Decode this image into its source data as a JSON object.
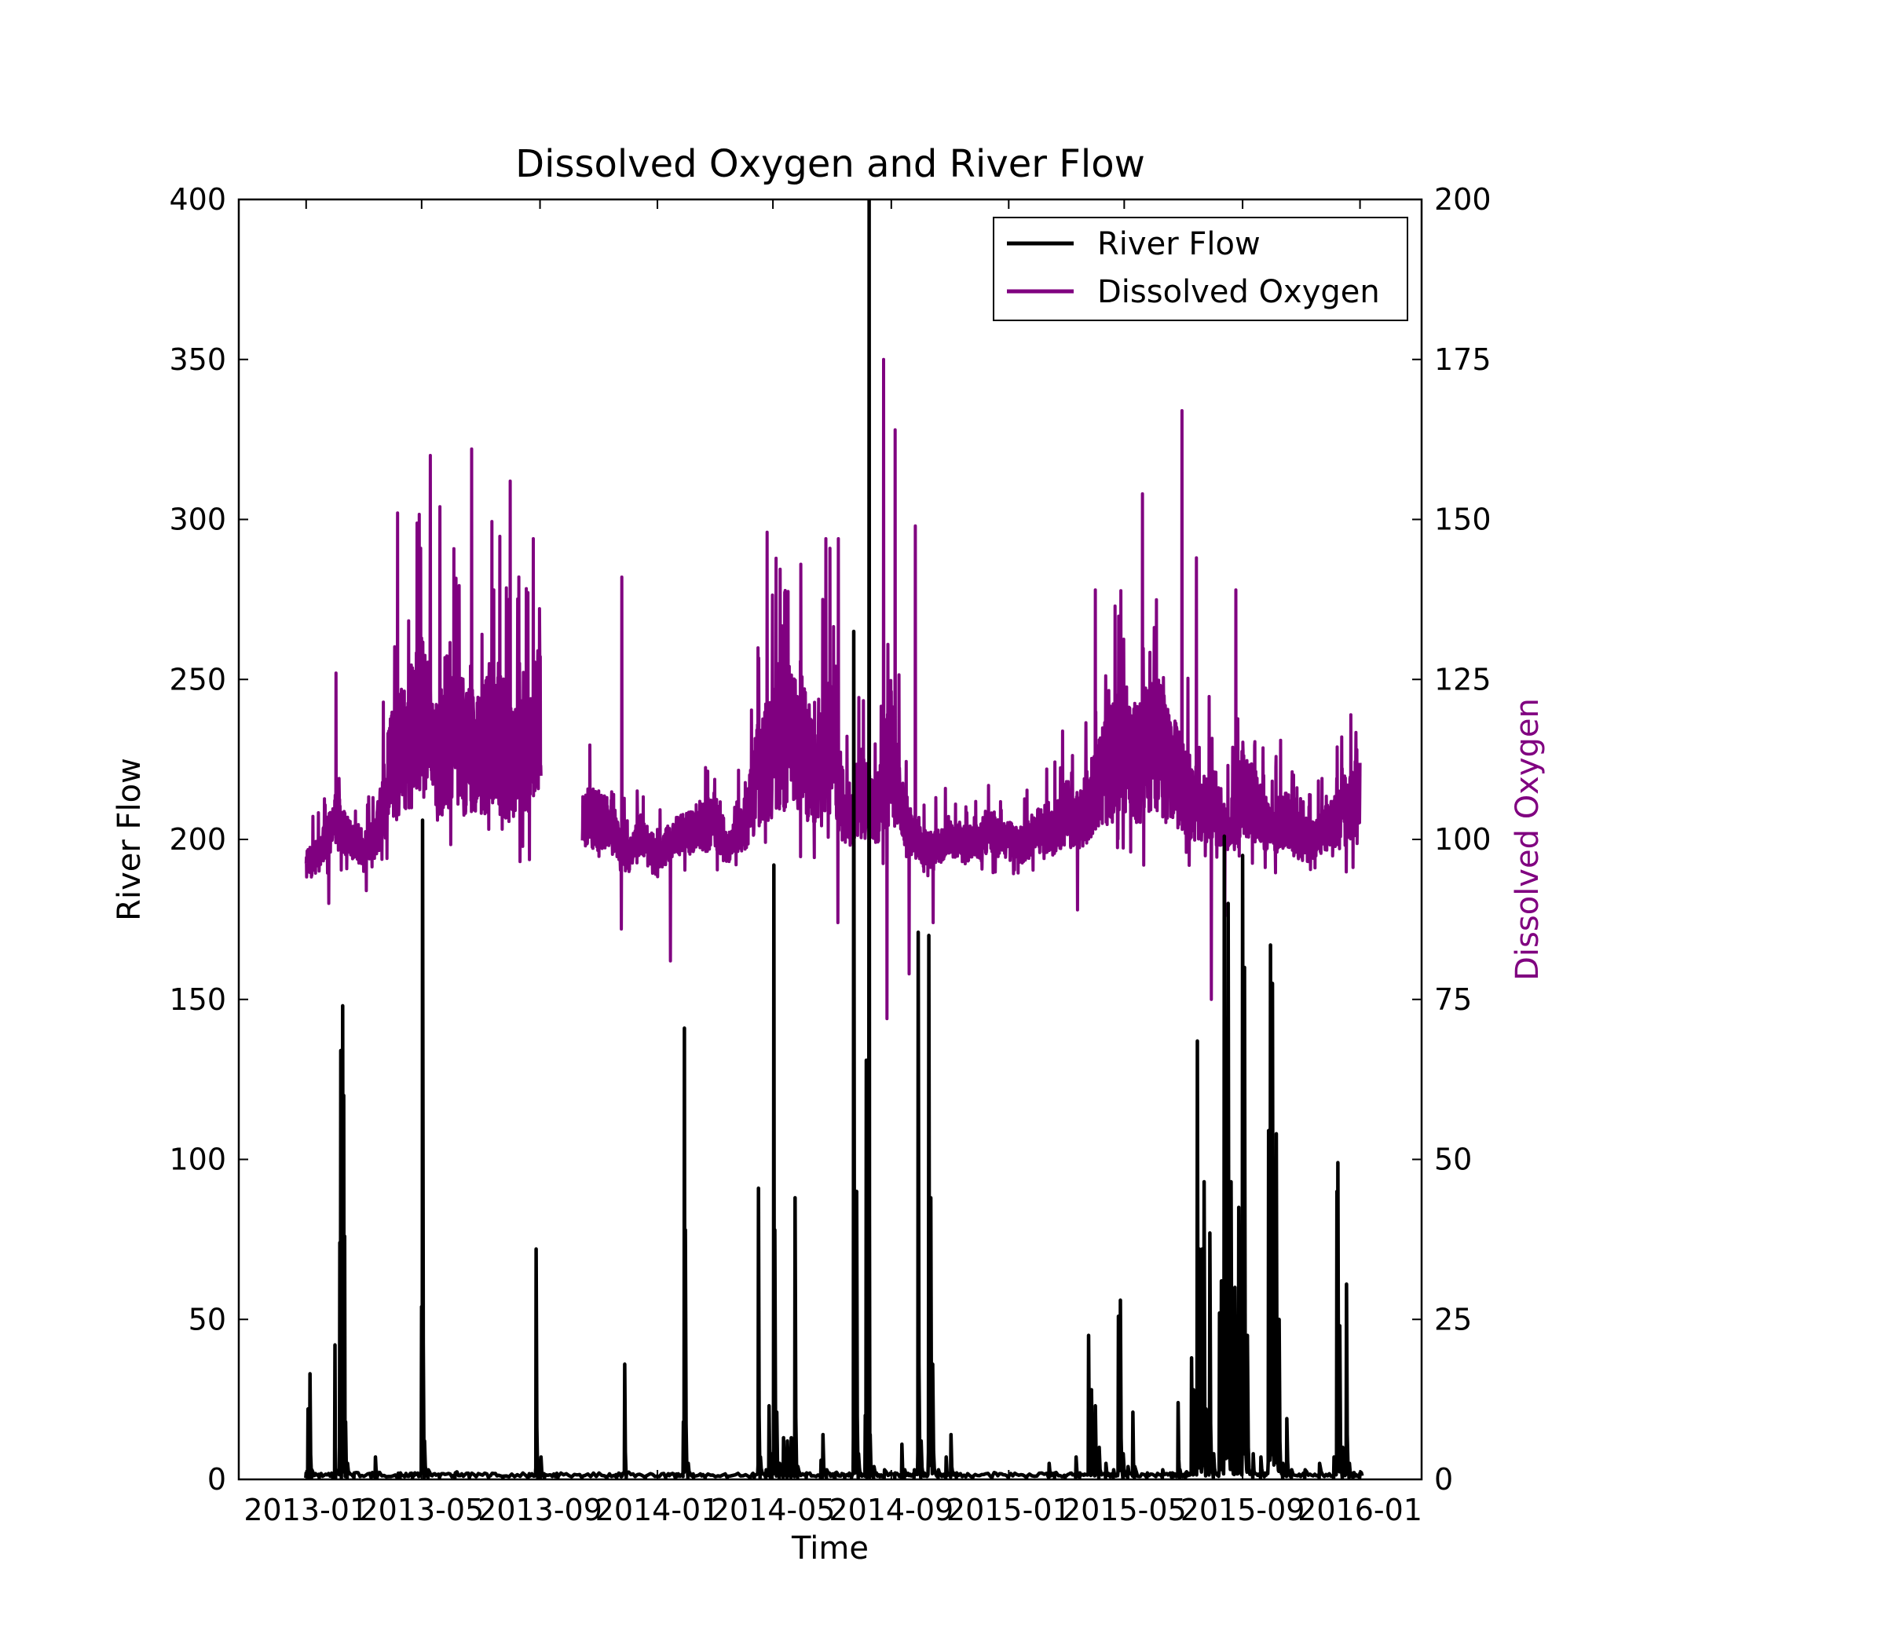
{
  "chart_data": {
    "type": "line",
    "title": "Dissolved Oxygen and River Flow",
    "xlabel": "Time",
    "ylabel": "River Flow",
    "y2label": "Dissolved Oxygen",
    "xlim": [
      "2012-10-23",
      "2016-03-05"
    ],
    "ylim": [
      0,
      400
    ],
    "y2lim": [
      0,
      200
    ],
    "xticks": [
      "2013-01",
      "2013-05",
      "2013-09",
      "2014-01",
      "2014-05",
      "2014-09",
      "2015-01",
      "2015-05",
      "2015-09",
      "2016-01"
    ],
    "xtick_dates": [
      "2013-01-01",
      "2013-05-01",
      "2013-09-01",
      "2014-01-01",
      "2014-05-01",
      "2014-09-01",
      "2015-01-01",
      "2015-05-01",
      "2015-09-01",
      "2016-01-01"
    ],
    "yticks": [
      "0",
      "50",
      "100",
      "150",
      "200",
      "250",
      "300",
      "350",
      "400"
    ],
    "y2ticks": [
      "0",
      "25",
      "50",
      "75",
      "100",
      "125",
      "150",
      "175",
      "200"
    ],
    "grid": false,
    "legend_position": "top-right",
    "colors": {
      "river_flow": "#000000",
      "dissolved_oxygen": "#800080"
    },
    "series": [
      {
        "name": "River Flow",
        "axis": "left",
        "color": "#000000",
        "points": [
          [
            "2013-01-01",
            2
          ],
          [
            "2013-01-03",
            22
          ],
          [
            "2013-01-04",
            4
          ],
          [
            "2013-01-05",
            33
          ],
          [
            "2013-01-07",
            3
          ],
          [
            "2013-01-15",
            1
          ],
          [
            "2013-01-29",
            1
          ],
          [
            "2013-01-31",
            42
          ],
          [
            "2013-02-01",
            3
          ],
          [
            "2013-02-05",
            74
          ],
          [
            "2013-02-06",
            134
          ],
          [
            "2013-02-07",
            10
          ],
          [
            "2013-02-08",
            148
          ],
          [
            "2013-02-09",
            120
          ],
          [
            "2013-02-10",
            76
          ],
          [
            "2013-02-11",
            18
          ],
          [
            "2013-02-13",
            5
          ],
          [
            "2013-02-20",
            2
          ],
          [
            "2013-03-10",
            1
          ],
          [
            "2013-03-14",
            7
          ],
          [
            "2013-03-16",
            1
          ],
          [
            "2013-04-06",
            1
          ],
          [
            "2013-04-09",
            2
          ],
          [
            "2013-04-22",
            1
          ],
          [
            "2013-05-01",
            54
          ],
          [
            "2013-05-02",
            206
          ],
          [
            "2013-05-04",
            12
          ],
          [
            "2013-05-08",
            3
          ],
          [
            "2013-05-20",
            1
          ],
          [
            "2013-06-05",
            2
          ],
          [
            "2013-06-20",
            1
          ],
          [
            "2013-07-10",
            1
          ],
          [
            "2013-07-25",
            1
          ],
          [
            "2013-08-20",
            1
          ],
          [
            "2013-08-28",
            72
          ],
          [
            "2013-08-30",
            6
          ],
          [
            "2013-09-02",
            7
          ],
          [
            "2013-09-06",
            1
          ],
          [
            "2013-09-20",
            1
          ],
          [
            "2013-10-15",
            1
          ],
          [
            "2013-11-10",
            1
          ],
          [
            "2013-11-20",
            1
          ],
          [
            "2013-11-28",
            36
          ],
          [
            "2013-11-30",
            2
          ],
          [
            "2013-12-20",
            1
          ],
          [
            "2014-01-10",
            1
          ],
          [
            "2014-01-20",
            1
          ],
          [
            "2014-01-28",
            18
          ],
          [
            "2014-01-29",
            141
          ],
          [
            "2014-01-30",
            78
          ],
          [
            "2014-02-02",
            5
          ],
          [
            "2014-02-08",
            1
          ],
          [
            "2014-02-20",
            1
          ],
          [
            "2014-03-15",
            1
          ],
          [
            "2014-04-08",
            1
          ],
          [
            "2014-04-12",
            1
          ],
          [
            "2014-04-16",
            91
          ],
          [
            "2014-04-18",
            7
          ],
          [
            "2014-04-24",
            3
          ],
          [
            "2014-04-27",
            23
          ],
          [
            "2014-04-29",
            8
          ],
          [
            "2014-05-02",
            192
          ],
          [
            "2014-05-03",
            78
          ],
          [
            "2014-05-05",
            21
          ],
          [
            "2014-05-08",
            5
          ],
          [
            "2014-05-12",
            13
          ],
          [
            "2014-05-16",
            12
          ],
          [
            "2014-05-20",
            13
          ],
          [
            "2014-05-24",
            88
          ],
          [
            "2014-05-27",
            4
          ],
          [
            "2014-06-05",
            2
          ],
          [
            "2014-06-20",
            6
          ],
          [
            "2014-06-22",
            14
          ],
          [
            "2014-06-26",
            3
          ],
          [
            "2014-07-05",
            2
          ],
          [
            "2014-07-15",
            1
          ],
          [
            "2014-07-22",
            1
          ],
          [
            "2014-07-24",
            265
          ],
          [
            "2014-07-26",
            40
          ],
          [
            "2014-07-27",
            90
          ],
          [
            "2014-07-29",
            8
          ],
          [
            "2014-08-05",
            20
          ],
          [
            "2014-08-06",
            131
          ],
          [
            "2014-08-07",
            12
          ],
          [
            "2014-08-09",
            400
          ],
          [
            "2014-08-10",
            14
          ],
          [
            "2014-08-14",
            4
          ],
          [
            "2014-08-25",
            3
          ],
          [
            "2014-09-05",
            2
          ],
          [
            "2014-09-12",
            11
          ],
          [
            "2014-09-15",
            3
          ],
          [
            "2014-09-25",
            3
          ],
          [
            "2014-09-29",
            171
          ],
          [
            "2014-10-02",
            12
          ],
          [
            "2014-10-10",
            170
          ],
          [
            "2014-10-12",
            88
          ],
          [
            "2014-10-14",
            36
          ],
          [
            "2014-10-20",
            3
          ],
          [
            "2014-10-28",
            7
          ],
          [
            "2014-11-02",
            14
          ],
          [
            "2014-11-08",
            2
          ],
          [
            "2014-11-25",
            1
          ],
          [
            "2014-12-15",
            1
          ],
          [
            "2015-01-01",
            1
          ],
          [
            "2015-01-20",
            1
          ],
          [
            "2015-02-12",
            5
          ],
          [
            "2015-02-18",
            2
          ],
          [
            "2015-03-01",
            1
          ],
          [
            "2015-03-12",
            7
          ],
          [
            "2015-03-16",
            2
          ],
          [
            "2015-03-25",
            45
          ],
          [
            "2015-03-28",
            28
          ],
          [
            "2015-04-01",
            23
          ],
          [
            "2015-04-05",
            10
          ],
          [
            "2015-04-12",
            5
          ],
          [
            "2015-04-20",
            3
          ],
          [
            "2015-04-25",
            51
          ],
          [
            "2015-04-27",
            56
          ],
          [
            "2015-04-30",
            8
          ],
          [
            "2015-05-05",
            4
          ],
          [
            "2015-05-10",
            21
          ],
          [
            "2015-05-12",
            4
          ],
          [
            "2015-05-25",
            2
          ],
          [
            "2015-06-10",
            3
          ],
          [
            "2015-06-20",
            2
          ],
          [
            "2015-06-26",
            24
          ],
          [
            "2015-06-28",
            3
          ],
          [
            "2015-07-04",
            2
          ],
          [
            "2015-07-10",
            38
          ],
          [
            "2015-07-12",
            28
          ],
          [
            "2015-07-16",
            137
          ],
          [
            "2015-07-18",
            72
          ],
          [
            "2015-07-21",
            72
          ],
          [
            "2015-07-23",
            93
          ],
          [
            "2015-07-25",
            22
          ],
          [
            "2015-07-29",
            77
          ],
          [
            "2015-08-02",
            8
          ],
          [
            "2015-08-08",
            52
          ],
          [
            "2015-08-10",
            62
          ],
          [
            "2015-08-13",
            201
          ],
          [
            "2015-08-15",
            130
          ],
          [
            "2015-08-17",
            180
          ],
          [
            "2015-08-20",
            93
          ],
          [
            "2015-08-24",
            60
          ],
          [
            "2015-08-28",
            85
          ],
          [
            "2015-09-01",
            195
          ],
          [
            "2015-09-03",
            160
          ],
          [
            "2015-09-06",
            45
          ],
          [
            "2015-09-12",
            8
          ],
          [
            "2015-09-20",
            7
          ],
          [
            "2015-09-28",
            109
          ],
          [
            "2015-09-30",
            167
          ],
          [
            "2015-10-02",
            155
          ],
          [
            "2015-10-04",
            90
          ],
          [
            "2015-10-06",
            108
          ],
          [
            "2015-10-09",
            50
          ],
          [
            "2015-10-13",
            5
          ],
          [
            "2015-10-17",
            19
          ],
          [
            "2015-10-22",
            3
          ],
          [
            "2015-11-05",
            3
          ],
          [
            "2015-11-20",
            5
          ],
          [
            "2015-12-05",
            7
          ],
          [
            "2015-12-08",
            90
          ],
          [
            "2015-12-09",
            99
          ],
          [
            "2015-12-11",
            48
          ],
          [
            "2015-12-14",
            10
          ],
          [
            "2015-12-18",
            61
          ],
          [
            "2015-12-21",
            5
          ],
          [
            "2015-12-25",
            2
          ],
          [
            "2016-01-01",
            2
          ]
        ]
      },
      {
        "name": "Dissolved Oxygen",
        "axis": "right",
        "color": "#800080",
        "points": [
          [
            "2013-01-01",
            95
          ],
          [
            "2013-01-15",
            98
          ],
          [
            "2013-02-01",
            103
          ],
          [
            "2013-02-15",
            100
          ],
          [
            "2013-03-01",
            99
          ],
          [
            "2013-03-15",
            101
          ],
          [
            "2013-04-01",
            112
          ],
          [
            "2013-04-15",
            114
          ],
          [
            "2013-05-01",
            120
          ],
          [
            "2013-05-15",
            112
          ],
          [
            "2013-06-01",
            116
          ],
          [
            "2013-06-15",
            114
          ],
          [
            "2013-07-01",
            113
          ],
          [
            "2013-07-15",
            118
          ],
          [
            "2013-08-01",
            112
          ],
          [
            "2013-08-15",
            115
          ],
          [
            "2013-08-31",
            118
          ],
          [
            "2013-10-16",
            104
          ],
          [
            "2013-11-01",
            103
          ],
          [
            "2013-11-15",
            102
          ],
          [
            "2013-12-01",
            97
          ],
          [
            "2013-12-15",
            101
          ],
          [
            "2014-01-01",
            97
          ],
          [
            "2014-01-15",
            100
          ],
          [
            "2014-02-01",
            101
          ],
          [
            "2014-02-15",
            102
          ],
          [
            "2014-03-01",
            103
          ],
          [
            "2014-03-15",
            99
          ],
          [
            "2014-04-01",
            102
          ],
          [
            "2014-04-15",
            110
          ],
          [
            "2014-05-01",
            114
          ],
          [
            "2014-05-15",
            116
          ],
          [
            "2014-06-01",
            115
          ],
          [
            "2014-06-15",
            109
          ],
          [
            "2014-07-01",
            116
          ],
          [
            "2014-07-15",
            103
          ],
          [
            "2014-08-01",
            107
          ],
          [
            "2014-08-15",
            104
          ],
          [
            "2014-09-01",
            113
          ],
          [
            "2014-09-15",
            103
          ],
          [
            "2014-10-01",
            99
          ],
          [
            "2014-10-15",
            98
          ],
          [
            "2014-11-01",
            101
          ],
          [
            "2014-11-15",
            99
          ],
          [
            "2014-12-01",
            100
          ],
          [
            "2014-12-15",
            101
          ],
          [
            "2015-01-01",
            100
          ],
          [
            "2015-01-15",
            99
          ],
          [
            "2015-02-01",
            102
          ],
          [
            "2015-02-15",
            101
          ],
          [
            "2015-03-01",
            104
          ],
          [
            "2015-03-15",
            103
          ],
          [
            "2015-04-01",
            108
          ],
          [
            "2015-04-15",
            112
          ],
          [
            "2015-05-01",
            114
          ],
          [
            "2015-05-15",
            112
          ],
          [
            "2015-06-01",
            115
          ],
          [
            "2015-06-15",
            112
          ],
          [
            "2015-07-01",
            109
          ],
          [
            "2015-07-15",
            104
          ],
          [
            "2015-08-01",
            106
          ],
          [
            "2015-08-15",
            101
          ],
          [
            "2015-09-01",
            108
          ],
          [
            "2015-09-15",
            105
          ],
          [
            "2015-10-01",
            101
          ],
          [
            "2015-10-15",
            104
          ],
          [
            "2015-11-01",
            99
          ],
          [
            "2015-11-15",
            100
          ],
          [
            "2015-12-01",
            102
          ],
          [
            "2015-12-15",
            104
          ],
          [
            "2016-01-01",
            108
          ]
        ],
        "peaks": [
          [
            "2013-02-01",
            126
          ],
          [
            "2013-04-06",
            151
          ],
          [
            "2013-05-10",
            160
          ],
          [
            "2013-05-20",
            152
          ],
          [
            "2013-06-22",
            161
          ],
          [
            "2013-07-15",
            139
          ],
          [
            "2013-08-01",
            156
          ],
          [
            "2013-08-25",
            147
          ],
          [
            "2013-11-25",
            141
          ],
          [
            "2014-04-25",
            148
          ],
          [
            "2014-05-30",
            143
          ],
          [
            "2014-06-25",
            147
          ],
          [
            "2014-07-08",
            147
          ],
          [
            "2014-08-24",
            175
          ],
          [
            "2014-09-05",
            164
          ],
          [
            "2014-09-26",
            149
          ],
          [
            "2015-04-01",
            139
          ],
          [
            "2015-05-20",
            154
          ],
          [
            "2015-06-30",
            167
          ],
          [
            "2015-07-15",
            144
          ],
          [
            "2015-08-25",
            139
          ]
        ],
        "troughs": [
          [
            "2013-01-25",
            90
          ],
          [
            "2013-03-05",
            92
          ],
          [
            "2013-11-25",
            86
          ],
          [
            "2014-01-15",
            81
          ],
          [
            "2014-07-08",
            87
          ],
          [
            "2014-08-28",
            72
          ],
          [
            "2014-09-20",
            79
          ],
          [
            "2014-10-15",
            87
          ],
          [
            "2015-03-14",
            89
          ],
          [
            "2015-07-31",
            75
          ],
          [
            "2015-08-14",
            88
          ]
        ],
        "gaps": [
          [
            "2013-09-02",
            "2013-10-15"
          ]
        ]
      }
    ]
  },
  "legend": {
    "items": [
      {
        "label": "River Flow"
      },
      {
        "label": "Dissolved Oxygen"
      }
    ]
  }
}
